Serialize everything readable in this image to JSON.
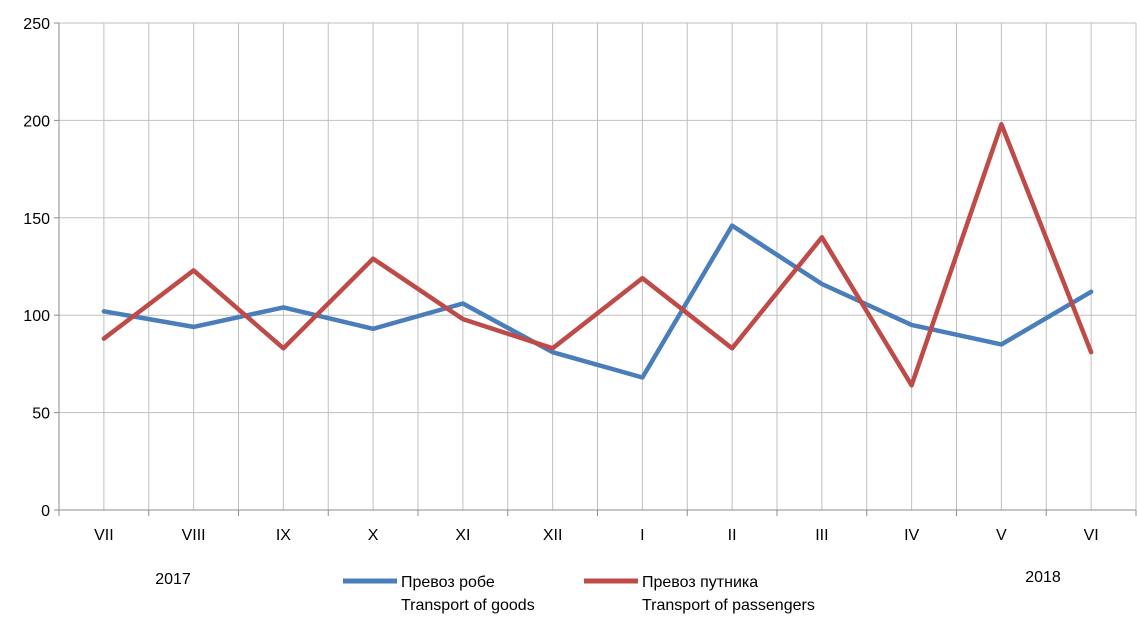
{
  "chart_data": {
    "type": "line",
    "categories": [
      "VII",
      "VIII",
      "IX",
      "X",
      "XI",
      "XII",
      "I",
      "II",
      "III",
      "IV",
      "V",
      "VI"
    ],
    "ylim": [
      0,
      250
    ],
    "yticks": [
      0,
      50,
      100,
      150,
      200,
      250
    ],
    "grid": true,
    "legend_position": "bottom-center",
    "series": [
      {
        "name_line1": "Превоз робе",
        "name_line2": "Transport of goods",
        "color": "#4a7ebb",
        "values": [
          102,
          94,
          104,
          93,
          106,
          81,
          68,
          146,
          116,
          95,
          85,
          112
        ]
      },
      {
        "name_line1": "Превоз путника",
        "name_line2": "Transport of passengers",
        "color": "#be4b48",
        "values": [
          88,
          123,
          83,
          129,
          98,
          83,
          119,
          83,
          140,
          64,
          198,
          81
        ]
      }
    ],
    "year_labels": {
      "start": "2017",
      "end": "2018"
    }
  }
}
